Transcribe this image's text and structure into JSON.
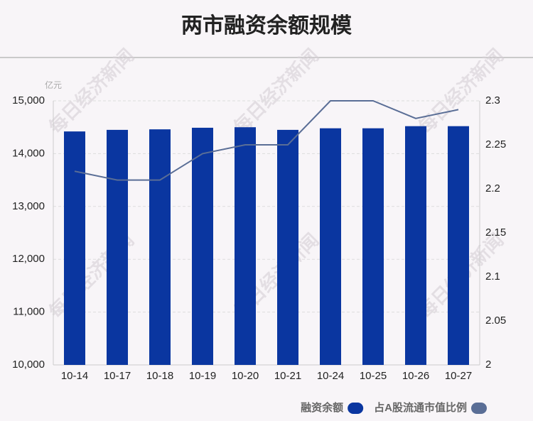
{
  "chart_data": {
    "type": "bar_line",
    "title": "两市融资余额规模",
    "y_unit": "亿元",
    "watermark": "每日经济新闻",
    "categories": [
      "10-14",
      "10-17",
      "10-18",
      "10-19",
      "10-20",
      "10-21",
      "10-24",
      "10-25",
      "10-26",
      "10-27"
    ],
    "series": [
      {
        "name": "融资余额",
        "type": "bar",
        "color": "#0a36a0",
        "values": [
          14420,
          14450,
          14460,
          14490,
          14500,
          14450,
          14480,
          14480,
          14520,
          14520
        ]
      },
      {
        "name": "占A股流通市值比例",
        "type": "line",
        "axis": "y2",
        "color": "#5a6e96",
        "values": [
          2.22,
          2.21,
          2.21,
          2.24,
          2.25,
          2.25,
          2.3,
          2.3,
          2.28,
          2.29
        ]
      }
    ],
    "ylim": [
      10000,
      15000
    ],
    "yticks": [
      {
        "value": 10000,
        "label": "10,000"
      },
      {
        "value": 11000,
        "label": "11,000"
      },
      {
        "value": 12000,
        "label": "12,000"
      },
      {
        "value": 13000,
        "label": "13,000"
      },
      {
        "value": 14000,
        "label": "14,000"
      },
      {
        "value": 15000,
        "label": "15,000"
      }
    ],
    "y2lim": [
      2,
      2.3
    ],
    "y2ticks": [
      2,
      2.05,
      2.1,
      2.15,
      2.2,
      2.25,
      2.3
    ],
    "grid": true
  }
}
